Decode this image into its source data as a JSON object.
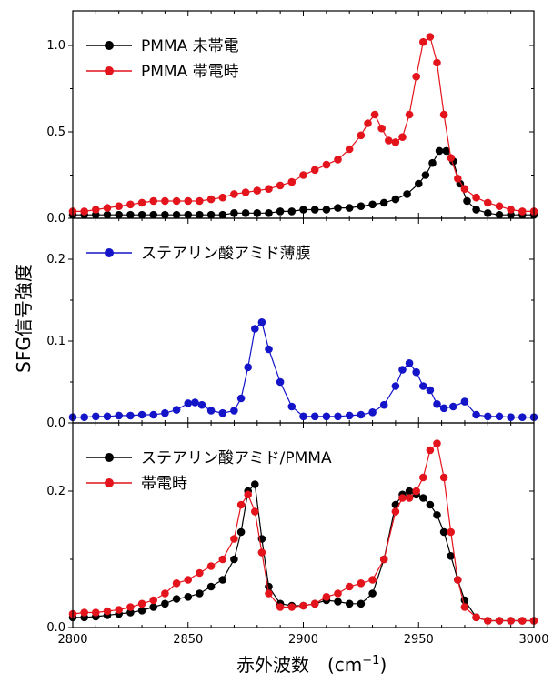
{
  "chart_data": {
    "type": "scatter",
    "ylabel": "SFG信号強度",
    "xlabel": "赤外波数",
    "xlabel_unit": "(cm",
    "xlabel_sup": "−1",
    "xlabel_close": ")",
    "xlim": [
      2800,
      3000
    ],
    "x_ticks": [
      "2800",
      "2850",
      "2900",
      "2950",
      "3000"
    ],
    "panels": [
      {
        "id": "top",
        "ylim": [
          0,
          1.2
        ],
        "y_ticks": [
          "0.0",
          "0.5",
          "1.0"
        ],
        "y_tick_values": [
          0,
          0.5,
          1.0
        ],
        "legend_position": "top-left",
        "series": [
          {
            "name": "PMMA 未帯電",
            "color": "#000000",
            "x": [
              2800,
              2805,
              2810,
              2815,
              2820,
              2825,
              2830,
              2835,
              2840,
              2845,
              2850,
              2855,
              2860,
              2865,
              2870,
              2875,
              2880,
              2885,
              2890,
              2895,
              2900,
              2905,
              2910,
              2915,
              2920,
              2925,
              2930,
              2935,
              2940,
              2945,
              2950,
              2953,
              2956,
              2959,
              2962,
              2965,
              2968,
              2971,
              2975,
              2980,
              2985,
              2990,
              2995,
              3000
            ],
            "y": [
              0.02,
              0.02,
              0.02,
              0.02,
              0.02,
              0.02,
              0.02,
              0.02,
              0.02,
              0.02,
              0.02,
              0.02,
              0.02,
              0.02,
              0.03,
              0.03,
              0.03,
              0.03,
              0.04,
              0.04,
              0.05,
              0.05,
              0.05,
              0.06,
              0.06,
              0.07,
              0.08,
              0.09,
              0.11,
              0.14,
              0.2,
              0.25,
              0.32,
              0.39,
              0.39,
              0.33,
              0.2,
              0.1,
              0.05,
              0.03,
              0.02,
              0.02,
              0.02,
              0.02
            ]
          },
          {
            "name": "PMMA 帯電時",
            "color": "#e4141c",
            "x": [
              2800,
              2805,
              2810,
              2815,
              2820,
              2825,
              2830,
              2835,
              2840,
              2845,
              2850,
              2855,
              2860,
              2865,
              2870,
              2875,
              2880,
              2885,
              2890,
              2895,
              2900,
              2905,
              2910,
              2915,
              2920,
              2925,
              2928,
              2931,
              2934,
              2937,
              2940,
              2943,
              2946,
              2949,
              2952,
              2955,
              2958,
              2961,
              2964,
              2967,
              2970,
              2975,
              2980,
              2985,
              2990,
              2995,
              3000
            ],
            "y": [
              0.04,
              0.04,
              0.05,
              0.06,
              0.07,
              0.08,
              0.09,
              0.1,
              0.1,
              0.1,
              0.1,
              0.1,
              0.11,
              0.12,
              0.14,
              0.15,
              0.16,
              0.17,
              0.19,
              0.21,
              0.25,
              0.28,
              0.31,
              0.34,
              0.4,
              0.48,
              0.55,
              0.6,
              0.52,
              0.45,
              0.44,
              0.47,
              0.6,
              0.82,
              1.02,
              1.05,
              0.9,
              0.6,
              0.35,
              0.23,
              0.17,
              0.12,
              0.09,
              0.07,
              0.05,
              0.04,
              0.04
            ]
          }
        ]
      },
      {
        "id": "middle",
        "ylim": [
          0,
          0.25
        ],
        "y_ticks": [
          "0.0",
          "0.1",
          "0.2"
        ],
        "y_tick_values": [
          0,
          0.1,
          0.2
        ],
        "legend_position": "top-left",
        "series": [
          {
            "name": "ステアリン酸アミド薄膜",
            "color": "#1414c8",
            "x": [
              2800,
              2805,
              2810,
              2815,
              2820,
              2825,
              2830,
              2835,
              2840,
              2845,
              2850,
              2853,
              2856,
              2860,
              2865,
              2870,
              2873,
              2876,
              2879,
              2882,
              2885,
              2890,
              2895,
              2900,
              2905,
              2910,
              2915,
              2920,
              2925,
              2930,
              2935,
              2940,
              2943,
              2946,
              2949,
              2952,
              2955,
              2958,
              2961,
              2965,
              2970,
              2975,
              2980,
              2985,
              2990,
              2995,
              3000
            ],
            "y": [
              0.007,
              0.007,
              0.008,
              0.008,
              0.009,
              0.009,
              0.01,
              0.01,
              0.012,
              0.016,
              0.024,
              0.025,
              0.022,
              0.015,
              0.012,
              0.015,
              0.03,
              0.068,
              0.115,
              0.123,
              0.09,
              0.05,
              0.02,
              0.008,
              0.008,
              0.008,
              0.008,
              0.009,
              0.01,
              0.013,
              0.022,
              0.045,
              0.065,
              0.073,
              0.062,
              0.045,
              0.04,
              0.023,
              0.018,
              0.02,
              0.026,
              0.01,
              0.008,
              0.008,
              0.007,
              0.007,
              0.007
            ]
          }
        ]
      },
      {
        "id": "bottom",
        "ylim": [
          0,
          0.3
        ],
        "y_ticks": [
          "0.0",
          "0.2"
        ],
        "y_tick_values": [
          0,
          0.2
        ],
        "legend_position": "top-left",
        "series": [
          {
            "name": "ステアリン酸アミド/PMMA",
            "color": "#000000",
            "x": [
              2800,
              2805,
              2810,
              2815,
              2820,
              2825,
              2830,
              2835,
              2840,
              2845,
              2850,
              2855,
              2860,
              2865,
              2870,
              2873,
              2876,
              2879,
              2882,
              2885,
              2890,
              2895,
              2900,
              2905,
              2910,
              2915,
              2920,
              2925,
              2930,
              2935,
              2940,
              2943,
              2946,
              2949,
              2952,
              2955,
              2958,
              2961,
              2964,
              2967,
              2970,
              2975,
              2980,
              2985,
              2990,
              2995,
              3000
            ],
            "y": [
              0.015,
              0.015,
              0.016,
              0.018,
              0.02,
              0.022,
              0.025,
              0.03,
              0.035,
              0.042,
              0.045,
              0.05,
              0.06,
              0.07,
              0.1,
              0.14,
              0.2,
              0.21,
              0.13,
              0.06,
              0.035,
              0.032,
              0.032,
              0.035,
              0.04,
              0.038,
              0.035,
              0.035,
              0.05,
              0.1,
              0.18,
              0.195,
              0.2,
              0.195,
              0.19,
              0.18,
              0.165,
              0.14,
              0.105,
              0.07,
              0.04,
              0.015,
              0.01,
              0.01,
              0.01,
              0.01,
              0.01
            ]
          },
          {
            "name": "帯電時",
            "color": "#e4141c",
            "x": [
              2800,
              2805,
              2810,
              2815,
              2820,
              2825,
              2830,
              2835,
              2840,
              2845,
              2850,
              2855,
              2860,
              2865,
              2870,
              2873,
              2876,
              2879,
              2882,
              2885,
              2890,
              2895,
              2900,
              2905,
              2910,
              2915,
              2920,
              2925,
              2930,
              2935,
              2940,
              2943,
              2946,
              2949,
              2952,
              2955,
              2958,
              2961,
              2964,
              2967,
              2970,
              2975,
              2980,
              2985,
              2990,
              2995,
              3000
            ],
            "y": [
              0.02,
              0.022,
              0.022,
              0.024,
              0.026,
              0.03,
              0.035,
              0.04,
              0.05,
              0.065,
              0.07,
              0.08,
              0.09,
              0.1,
              0.13,
              0.18,
              0.195,
              0.17,
              0.11,
              0.05,
              0.03,
              0.03,
              0.032,
              0.035,
              0.045,
              0.05,
              0.06,
              0.065,
              0.07,
              0.1,
              0.17,
              0.19,
              0.19,
              0.2,
              0.22,
              0.26,
              0.27,
              0.22,
              0.14,
              0.07,
              0.03,
              0.015,
              0.01,
              0.01,
              0.01,
              0.01,
              0.01
            ]
          }
        ]
      }
    ]
  }
}
